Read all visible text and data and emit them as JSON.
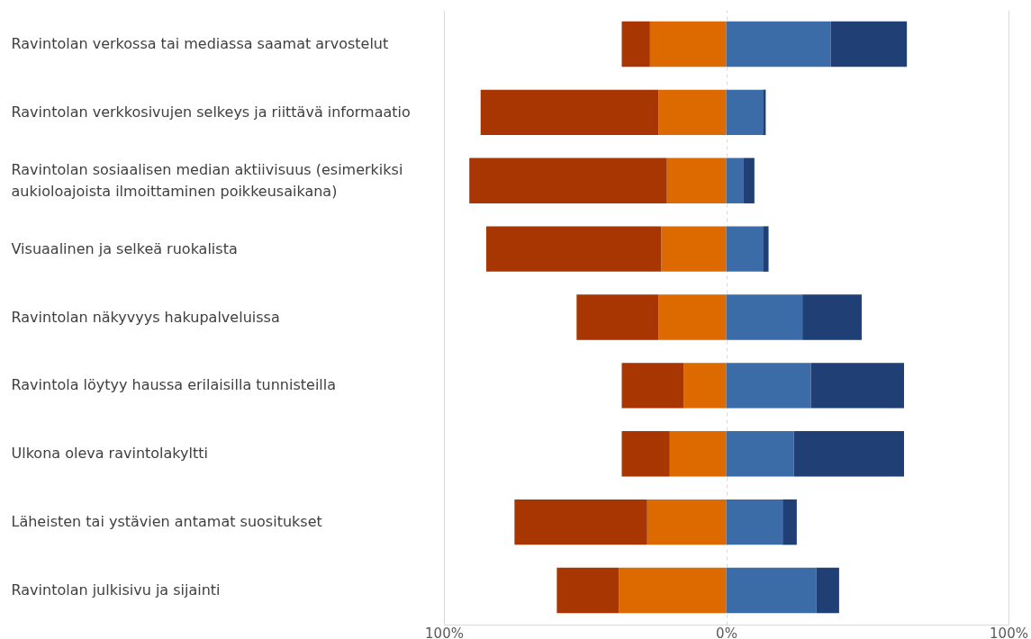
{
  "chart_data": {
    "type": "bar",
    "orientation": "horizontal",
    "stacked": true,
    "categories": [
      "Ravintolan verkossa tai mediassa saamat arvostelut",
      "Ravintolan verkkosivujen selkeys ja riittävä informaatio",
      "Ravintolan sosiaalisen median aktiivisuus (esimerkiksi aukioloajoista ilmoittaminen poikkeusaikana)",
      "Visuaalinen ja selkeä ruokalista",
      "Ravintolan näkyvyys hakupalveluissa",
      "Ravintola löytyy haussa erilaisilla tunnisteilla",
      "Ulkona oleva ravintolakyltti",
      "Läheisten tai ystävien antamat suositukset",
      "Ravintolan julkisivu ja sijainti"
    ],
    "series": [
      {
        "color": "#dd6a00",
        "values": [
          -27,
          -24,
          -21,
          -23,
          -24,
          -15,
          -20,
          -28,
          -38
        ]
      },
      {
        "color": "#a83603",
        "values": [
          -10,
          -63,
          -70,
          -62,
          -29,
          -22,
          -17,
          -47,
          -22
        ]
      },
      {
        "color": "#3b6ca8",
        "values": [
          37,
          13,
          6,
          13,
          27,
          30,
          24,
          20,
          32
        ]
      },
      {
        "color": "#1f3f75",
        "values": [
          27,
          1,
          4,
          2,
          21,
          33,
          39,
          5,
          8
        ]
      }
    ],
    "xlim": [
      -100,
      100
    ],
    "xticks": [
      {
        "value": -100,
        "label": "100%"
      },
      {
        "value": 0,
        "label": "0%"
      },
      {
        "value": 100,
        "label": "100%"
      }
    ],
    "grid": "x"
  }
}
